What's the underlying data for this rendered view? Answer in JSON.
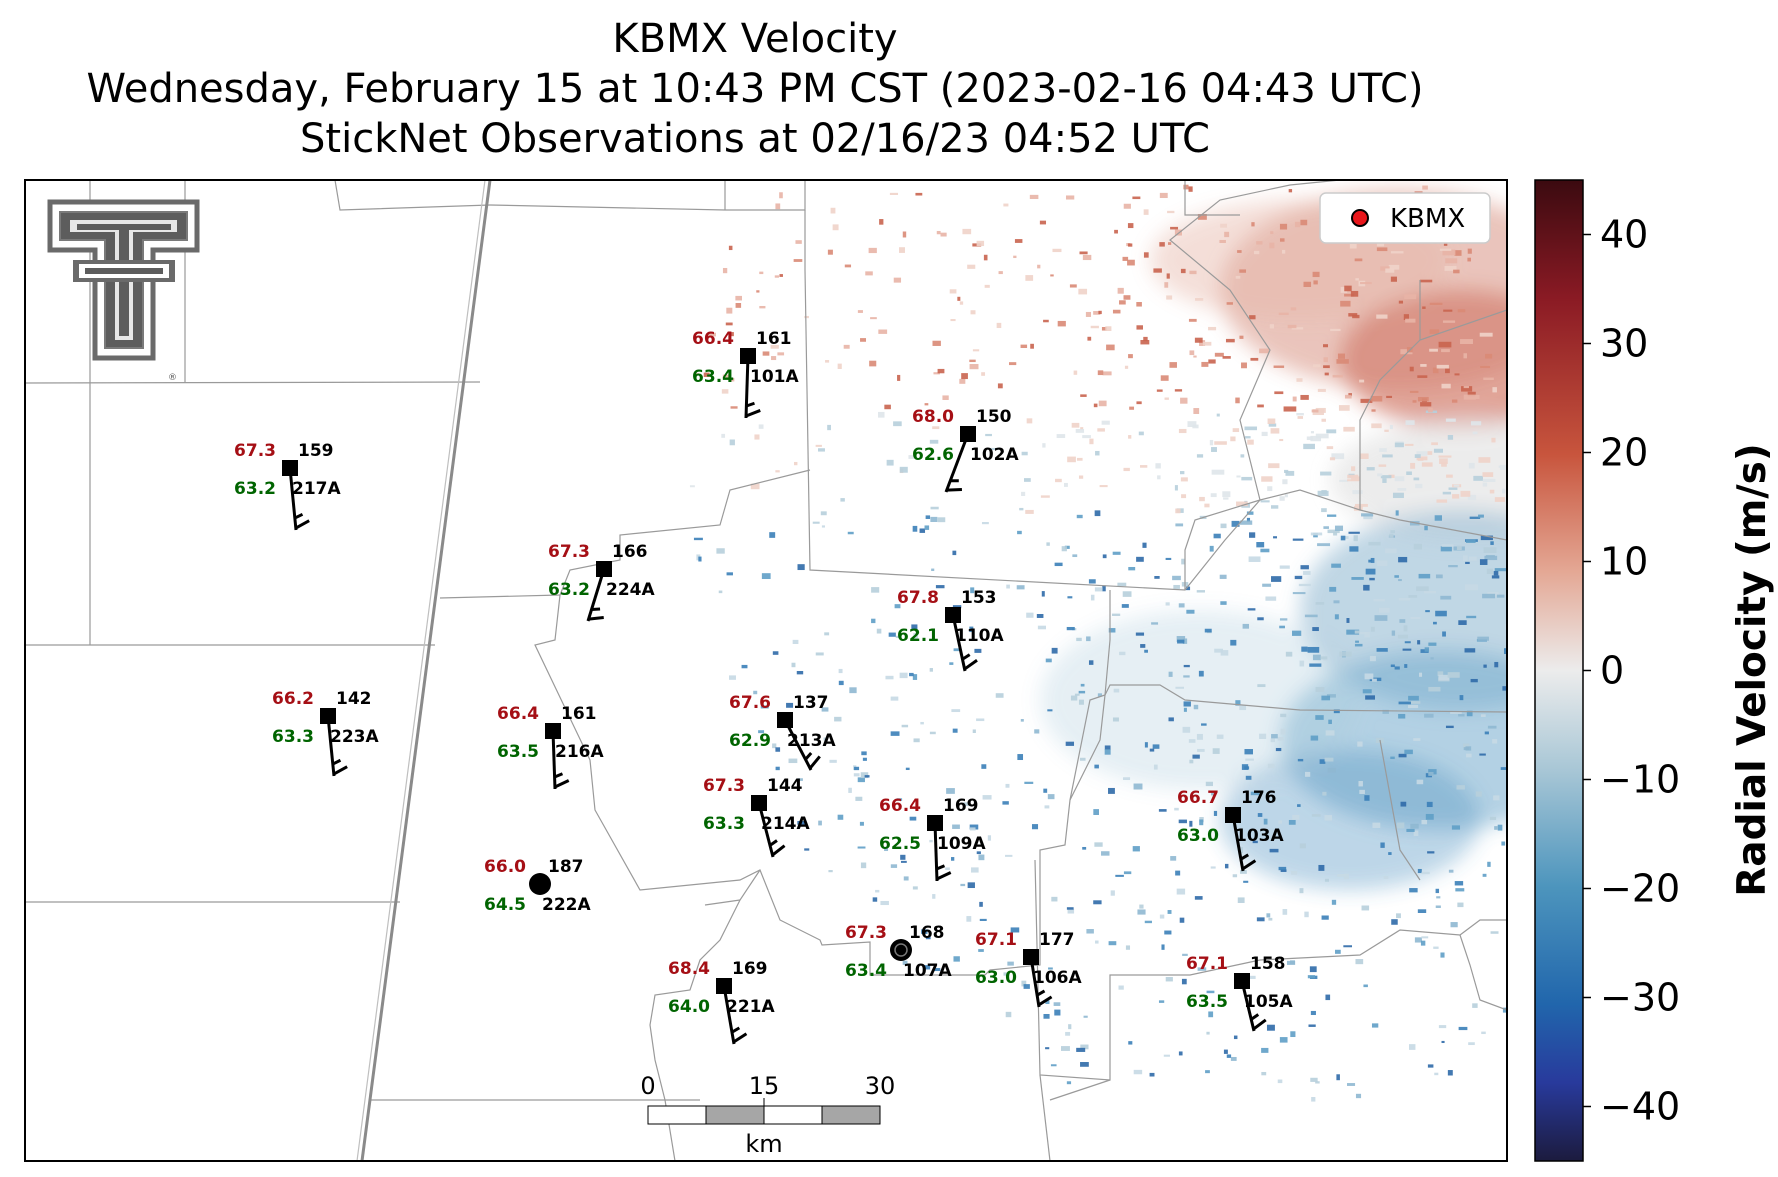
{
  "title": {
    "line1": "KBMX Velocity",
    "line2": "Wednesday, February 15 at 10:43 PM CST (2023-02-16 04:43 UTC)",
    "line3": "StickNet Observations at 02/16/23 04:52 UTC"
  },
  "legend": {
    "label": "KBMX",
    "marker_color": "#e8161b"
  },
  "colorbar": {
    "label": "Radial Velocity (m/s)",
    "range": [
      -45,
      45
    ],
    "ticks": [
      40,
      30,
      20,
      10,
      0,
      -10,
      -20,
      -30,
      -40
    ],
    "tick_labels": [
      "40",
      "30",
      "20",
      "10",
      "0",
      "−10",
      "−20",
      "−30",
      "−40"
    ]
  },
  "scalebar": {
    "ticks": [
      "0",
      "15",
      "30"
    ],
    "unit": "km"
  },
  "colors": {
    "temperature": "#a50f15",
    "dewpoint": "#006400",
    "station": "#000000"
  },
  "stations": [
    {
      "id": "101A",
      "temp": "66.4",
      "dew": "63.4",
      "pres": "161",
      "marker": "square"
    },
    {
      "id": "102A",
      "temp": "68.0",
      "dew": "62.6",
      "pres": "150",
      "marker": "square"
    },
    {
      "id": "217A",
      "temp": "67.3",
      "dew": "63.2",
      "pres": "159",
      "marker": "square"
    },
    {
      "id": "224A",
      "temp": "67.3",
      "dew": "63.2",
      "pres": "166",
      "marker": "square"
    },
    {
      "id": "110A",
      "temp": "67.8",
      "dew": "62.1",
      "pres": "153",
      "marker": "square"
    },
    {
      "id": "223A",
      "temp": "66.2",
      "dew": "63.3",
      "pres": "142",
      "marker": "square"
    },
    {
      "id": "216A",
      "temp": "66.4",
      "dew": "63.5",
      "pres": "161",
      "marker": "square"
    },
    {
      "id": "213A",
      "temp": "67.6",
      "dew": "62.9",
      "pres": "137",
      "marker": "square"
    },
    {
      "id": "214A",
      "temp": "67.3",
      "dew": "63.3",
      "pres": "144",
      "marker": "square"
    },
    {
      "id": "109A",
      "temp": "66.4",
      "dew": "62.5",
      "pres": "169",
      "marker": "square"
    },
    {
      "id": "103A",
      "temp": "66.7",
      "dew": "63.0",
      "pres": "176",
      "marker": "square"
    },
    {
      "id": "222A",
      "temp": "66.0",
      "dew": "64.5",
      "pres": "187",
      "marker": "circle"
    },
    {
      "id": "107A",
      "temp": "67.3",
      "dew": "63.4",
      "pres": "168",
      "marker": "circle"
    },
    {
      "id": "106A",
      "temp": "67.1",
      "dew": "63.0",
      "pres": "177",
      "marker": "square"
    },
    {
      "id": "105A",
      "temp": "67.1",
      "dew": "63.5",
      "pres": "158",
      "marker": "square"
    },
    {
      "id": "221A",
      "temp": "68.4",
      "dew": "64.0",
      "pres": "169",
      "marker": "square"
    }
  ]
}
